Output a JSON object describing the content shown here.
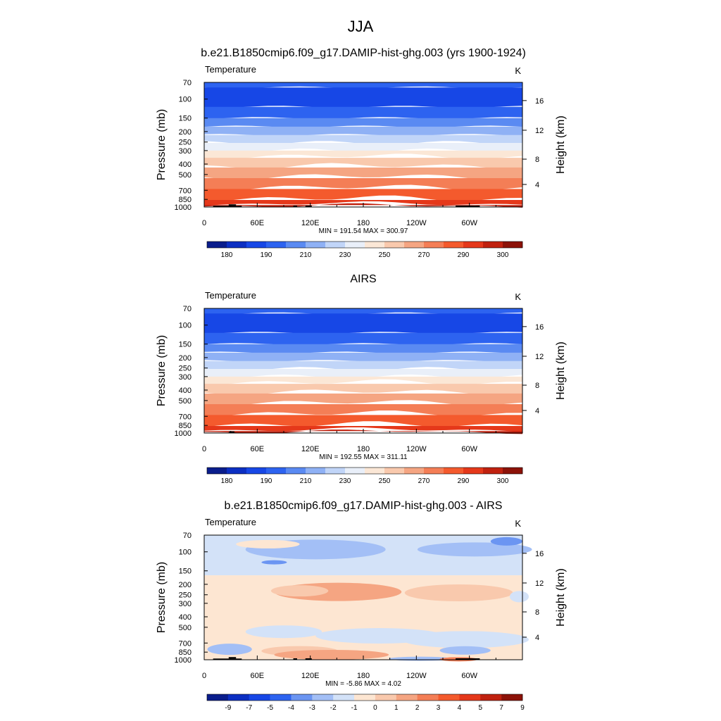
{
  "figure": {
    "season": "JJA",
    "colors": {
      "temperature_palette": [
        "#0a1d8c",
        "#0c2fc2",
        "#1747e6",
        "#2d63f0",
        "#5a8af2",
        "#8fb1f5",
        "#c1d5f8",
        "#e9eff9",
        "#fbe7d6",
        "#f9c9ad",
        "#f5a582",
        "#f47e56",
        "#f45a2d",
        "#e5381a",
        "#c0210f",
        "#8c1208"
      ],
      "diff_palette": [
        "#0a1d8c",
        "#0c2fc2",
        "#1747e6",
        "#2d63f0",
        "#6b95f2",
        "#a3bff6",
        "#d3e2f8",
        "#fde6d2",
        "#f9c9ad",
        "#f5a582",
        "#f47e56",
        "#f45a2d",
        "#e5381a",
        "#c0210f",
        "#8c1208"
      ],
      "topography": "#000000"
    }
  },
  "panels": [
    {
      "title": "b.e21.B1850cmip6.f09_g17.DAMIP-hist-ghg.003 (yrs 1900-1924)",
      "left_label": "Temperature",
      "units": "K",
      "stats": "MIN = 191.54  MAX = 300.97",
      "y_axis_label": "Pressure (mb)",
      "right_axis_label": "Height (km)",
      "pressure_ticks": [
        "70",
        "100",
        "150",
        "200",
        "250",
        "300",
        "400",
        "500",
        "700",
        "850",
        "1000"
      ],
      "height_ticks": [
        "16",
        "12",
        "8",
        "4"
      ],
      "lon_ticks": [
        "0",
        "60E",
        "120E",
        "180",
        "120W",
        "60W"
      ],
      "colorbar_labels": [
        "180",
        "190",
        "210",
        "230",
        "250",
        "270",
        "290",
        "300"
      ]
    },
    {
      "title": "AIRS",
      "left_label": "Temperature",
      "units": "K",
      "stats": "MIN = 192.55  MAX = 311.11",
      "y_axis_label": "Pressure (mb)",
      "right_axis_label": "Height (km)",
      "pressure_ticks": [
        "70",
        "100",
        "150",
        "200",
        "250",
        "300",
        "400",
        "500",
        "700",
        "850",
        "1000"
      ],
      "height_ticks": [
        "16",
        "12",
        "8",
        "4"
      ],
      "lon_ticks": [
        "0",
        "60E",
        "120E",
        "180",
        "120W",
        "60W"
      ],
      "colorbar_labels": [
        "180",
        "190",
        "210",
        "230",
        "250",
        "270",
        "290",
        "300"
      ]
    },
    {
      "title": "b.e21.B1850cmip6.f09_g17.DAMIP-hist-ghg.003 - AIRS",
      "left_label": "Temperature",
      "units": "K",
      "stats": "MIN = -5.86  MAX =  4.02",
      "y_axis_label": "Pressure (mb)",
      "right_axis_label": "Height (km)",
      "pressure_ticks": [
        "70",
        "100",
        "150",
        "200",
        "250",
        "300",
        "400",
        "500",
        "700",
        "850",
        "1000"
      ],
      "height_ticks": [
        "16",
        "12",
        "8",
        "4"
      ],
      "lon_ticks": [
        "0",
        "60E",
        "120E",
        "180",
        "120W",
        "60W"
      ],
      "colorbar_labels": [
        "-9",
        "-7",
        "-5",
        "-4",
        "-3",
        "-2",
        "-1",
        "0",
        "1",
        "2",
        "3",
        "4",
        "5",
        "7",
        "9"
      ]
    }
  ],
  "chart_data": [
    {
      "type": "heatmap",
      "title": "b.e21.B1850cmip6.f09_g17.DAMIP-hist-ghg.003 (yrs 1900-1924)",
      "xlabel": "",
      "ylabel": "Pressure (mb)",
      "y2label": "Height (km)",
      "x_ticks": [
        "0",
        "60E",
        "120E",
        "180",
        "120W",
        "60W"
      ],
      "y_ticks": [
        70,
        100,
        150,
        200,
        250,
        300,
        400,
        500,
        700,
        850,
        1000
      ],
      "y_scale": "log",
      "y_reversed": true,
      "colorbar_levels": [
        180,
        190,
        210,
        230,
        250,
        270,
        290,
        300
      ],
      "profile_by_pressure": [
        {
          "p": 70,
          "t": 205
        },
        {
          "p": 100,
          "t": 200
        },
        {
          "p": 150,
          "t": 206
        },
        {
          "p": 200,
          "t": 215
        },
        {
          "p": 250,
          "t": 225
        },
        {
          "p": 300,
          "t": 235
        },
        {
          "p": 400,
          "t": 250
        },
        {
          "p": 500,
          "t": 260
        },
        {
          "p": 700,
          "t": 275
        },
        {
          "p": 850,
          "t": 285
        },
        {
          "p": 1000,
          "t": 293
        }
      ],
      "min": 191.54,
      "max": 300.97
    },
    {
      "type": "heatmap",
      "title": "AIRS",
      "xlabel": "",
      "ylabel": "Pressure (mb)",
      "y2label": "Height (km)",
      "x_ticks": [
        "0",
        "60E",
        "120E",
        "180",
        "120W",
        "60W"
      ],
      "y_ticks": [
        70,
        100,
        150,
        200,
        250,
        300,
        400,
        500,
        700,
        850,
        1000
      ],
      "y_scale": "log",
      "y_reversed": true,
      "colorbar_levels": [
        180,
        190,
        210,
        230,
        250,
        270,
        290,
        300
      ],
      "profile_by_pressure": [
        {
          "p": 70,
          "t": 207
        },
        {
          "p": 100,
          "t": 201
        },
        {
          "p": 150,
          "t": 207
        },
        {
          "p": 200,
          "t": 214
        },
        {
          "p": 250,
          "t": 223
        },
        {
          "p": 300,
          "t": 234
        },
        {
          "p": 400,
          "t": 249
        },
        {
          "p": 500,
          "t": 259
        },
        {
          "p": 700,
          "t": 276
        },
        {
          "p": 850,
          "t": 287
        },
        {
          "p": 1000,
          "t": 296
        }
      ],
      "min": 192.55,
      "max": 311.11
    },
    {
      "type": "heatmap",
      "title": "b.e21.B1850cmip6.f09_g17.DAMIP-hist-ghg.003 - AIRS",
      "xlabel": "",
      "ylabel": "Pressure (mb)",
      "y2label": "Height (km)",
      "x_ticks": [
        "0",
        "60E",
        "120E",
        "180",
        "120W",
        "60W"
      ],
      "y_ticks": [
        70,
        100,
        150,
        200,
        250,
        300,
        400,
        500,
        700,
        850,
        1000
      ],
      "y_scale": "log",
      "y_reversed": true,
      "colorbar_levels": [
        -9,
        -7,
        -5,
        -4,
        -3,
        -2,
        -1,
        0,
        1,
        2,
        3,
        4,
        5,
        7,
        9
      ],
      "profile_by_pressure": [
        {
          "p": 70,
          "t": -1.5
        },
        {
          "p": 100,
          "t": -1.5
        },
        {
          "p": 150,
          "t": -0.5
        },
        {
          "p": 200,
          "t": 0.5
        },
        {
          "p": 250,
          "t": 1.2
        },
        {
          "p": 300,
          "t": 0.5
        },
        {
          "p": 400,
          "t": 0.3
        },
        {
          "p": 500,
          "t": -0.3
        },
        {
          "p": 700,
          "t": -0.5
        },
        {
          "p": 850,
          "t": 0.5
        },
        {
          "p": 1000,
          "t": -0.5
        }
      ],
      "min": -5.86,
      "max": 4.02
    }
  ]
}
